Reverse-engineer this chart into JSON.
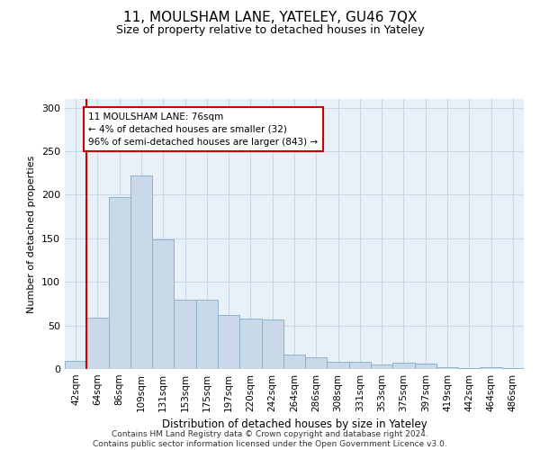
{
  "title": "11, MOULSHAM LANE, YATELEY, GU46 7QX",
  "subtitle": "Size of property relative to detached houses in Yateley",
  "xlabel": "Distribution of detached houses by size in Yateley",
  "ylabel": "Number of detached properties",
  "categories": [
    "42sqm",
    "64sqm",
    "86sqm",
    "109sqm",
    "131sqm",
    "153sqm",
    "175sqm",
    "197sqm",
    "220sqm",
    "242sqm",
    "264sqm",
    "286sqm",
    "308sqm",
    "331sqm",
    "353sqm",
    "375sqm",
    "397sqm",
    "419sqm",
    "442sqm",
    "464sqm",
    "486sqm"
  ],
  "values": [
    9,
    59,
    197,
    222,
    149,
    80,
    80,
    62,
    58,
    57,
    17,
    13,
    8,
    8,
    5,
    7,
    6,
    2,
    1,
    2,
    1
  ],
  "bar_color": "#c9d9ea",
  "bar_edge_color": "#8ab4cc",
  "vline_color": "#cc0000",
  "vline_pos": 0.5,
  "annotation_text": "11 MOULSHAM LANE: 76sqm\n← 4% of detached houses are smaller (32)\n96% of semi-detached houses are larger (843) →",
  "annotation_box_color": "#ffffff",
  "annotation_box_edge": "#cc0000",
  "grid_color": "#c8d8e8",
  "background_color": "#e8f0f8",
  "footer": "Contains HM Land Registry data © Crown copyright and database right 2024.\nContains public sector information licensed under the Open Government Licence v3.0.",
  "ylim": [
    0,
    310
  ],
  "yticks": [
    0,
    50,
    100,
    150,
    200,
    250,
    300
  ],
  "title_fontsize": 11,
  "subtitle_fontsize": 9,
  "axis_label_fontsize": 8,
  "tick_fontsize": 7.5,
  "footer_fontsize": 6.5
}
